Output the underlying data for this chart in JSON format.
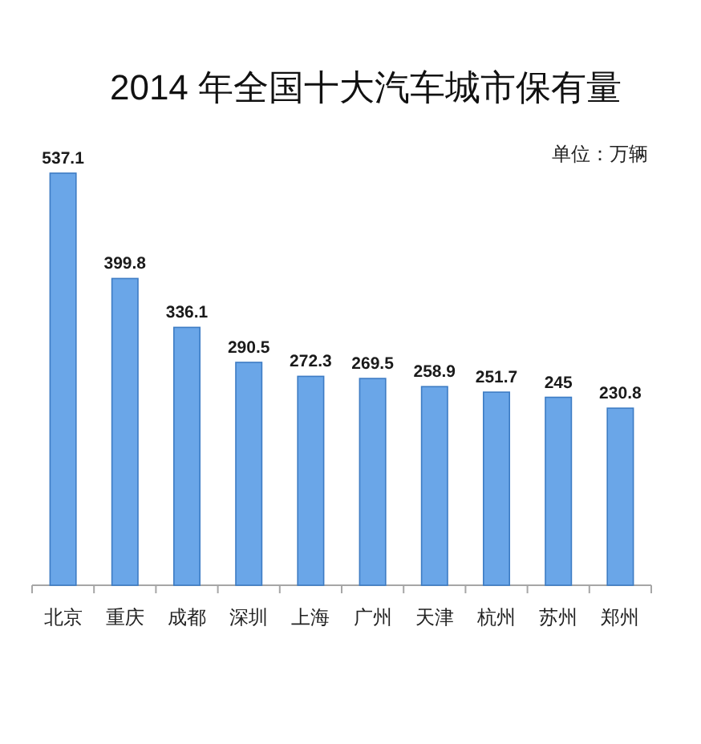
{
  "chart_data": {
    "type": "bar",
    "title": "2014 年全国十大汽车城市保有量",
    "annotations": [
      "单位：万辆"
    ],
    "categories": [
      "北京",
      "重庆",
      "成都",
      "深圳",
      "上海",
      "广州",
      "天津",
      "杭州",
      "苏州",
      "郑州"
    ],
    "values": [
      537.1,
      399.8,
      336.1,
      290.5,
      272.3,
      269.5,
      258.9,
      251.7,
      245,
      230.8
    ],
    "color": "#6aa6e8",
    "data_labels": true
  }
}
